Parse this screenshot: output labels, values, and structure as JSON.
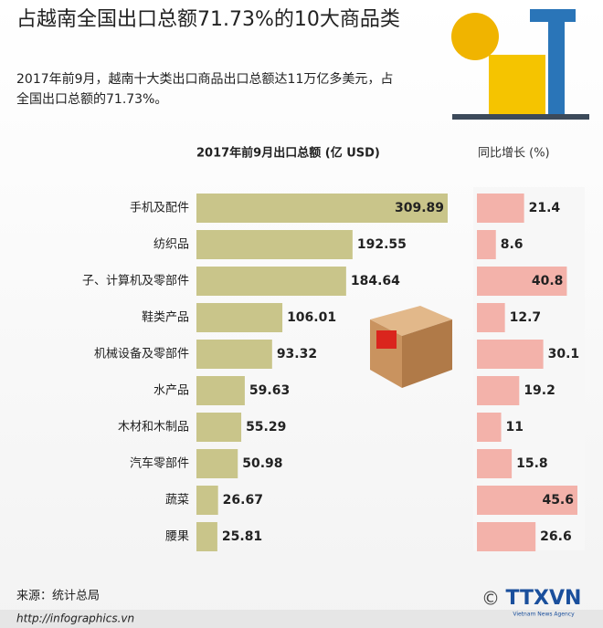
{
  "title": "占越南全国出口总额71.73%的10大商品类",
  "subtitle": "2017年前9月，越南十大类出口商品出口总额达11万亿多美元，占全国出口总额的71.73%。",
  "chart_data": [
    {
      "type": "bar",
      "orientation": "horizontal",
      "title": "2017年前9月出口总额 (亿 USD)",
      "categories": [
        "手机及配件",
        "纺织品",
        "子、计算机及零部件",
        "鞋类产品",
        "机械设备及零部件",
        "水产品",
        "木材和木制品",
        "汽车零部件",
        "蔬菜",
        "腰果"
      ],
      "values": [
        309.89,
        192.55,
        184.64,
        106.01,
        93.32,
        59.63,
        55.29,
        50.98,
        26.67,
        25.81
      ],
      "color": "#c9c58a"
    },
    {
      "type": "bar",
      "orientation": "horizontal",
      "title": "同比增长 (%)",
      "values": [
        21.4,
        8.6,
        40.8,
        12.7,
        30.1,
        19.2,
        11,
        15.8,
        45.6,
        26.6
      ],
      "color": "#f3b2aa"
    }
  ],
  "footer": {
    "source": "来源：统计总局",
    "url": "http://infographics.vn",
    "copyright": "©",
    "brand": "TTXVN",
    "brand_sub": "Vietnam News Agency"
  }
}
